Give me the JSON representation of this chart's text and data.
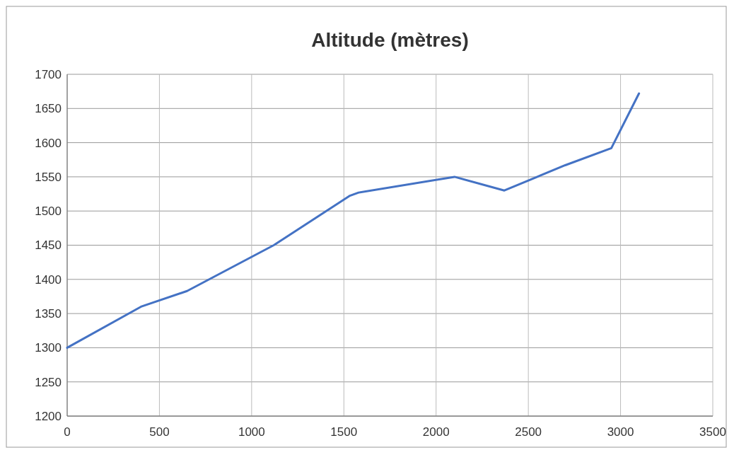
{
  "chart_data": {
    "type": "line",
    "title": "Altitude (mètres)",
    "x": [
      0,
      400,
      650,
      1120,
      1530,
      1580,
      2100,
      2370,
      2700,
      2950,
      3100
    ],
    "series": [
      {
        "color": "#4472c4",
        "values": [
          1300,
          1360,
          1383,
          1450,
          1522,
          1527,
          1550,
          1530,
          1567,
          1592,
          1672
        ]
      }
    ],
    "xlim": [
      0,
      3500
    ],
    "xticks": [
      0,
      500,
      1000,
      1500,
      2000,
      2500,
      3000,
      3500
    ],
    "ylim": [
      1200,
      1700
    ],
    "yticks": [
      1200,
      1250,
      1300,
      1350,
      1400,
      1450,
      1500,
      1550,
      1600,
      1650,
      1700
    ],
    "grid": true,
    "line_style": "solid"
  }
}
